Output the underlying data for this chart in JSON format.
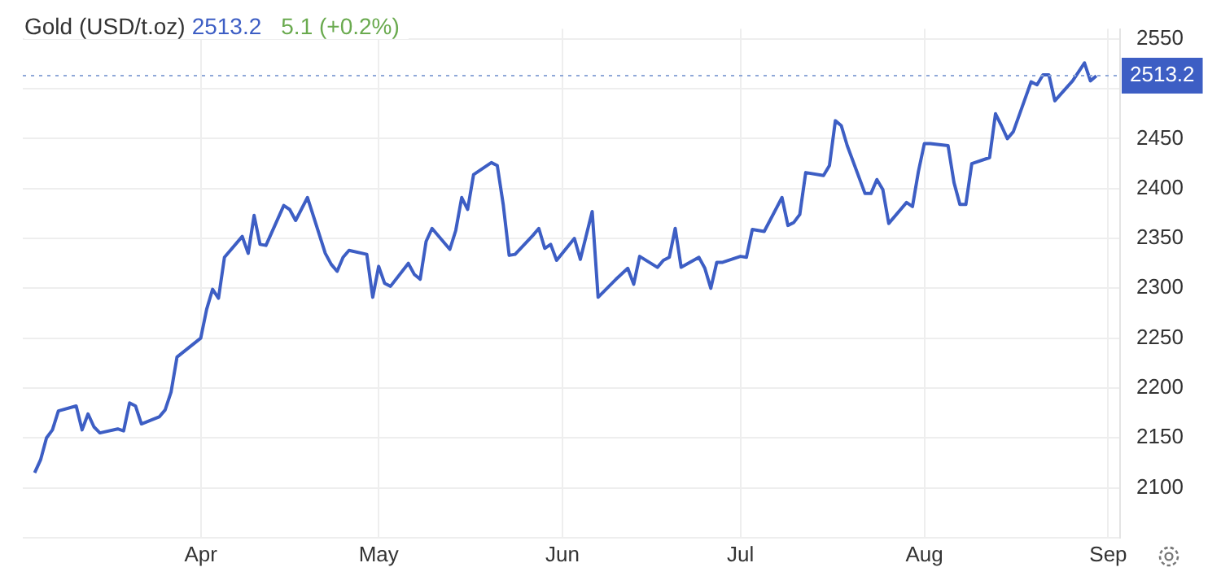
{
  "chart_data": {
    "type": "line",
    "title": "Gold (USD/t.oz)",
    "annotations": [
      "2513.2",
      "5.1 (+0.2%)"
    ],
    "x": [
      "--03-04",
      "--03-05",
      "--03-06",
      "--03-07",
      "--03-08",
      "--03-11",
      "--03-12",
      "--03-13",
      "--03-14",
      "--03-15",
      "--03-18",
      "--03-19",
      "--03-20",
      "--03-21",
      "--03-22",
      "--03-25",
      "--03-26",
      "--03-27",
      "--03-28",
      "--04-01",
      "--04-02",
      "--04-03",
      "--04-04",
      "--04-05",
      "--04-08",
      "--04-09",
      "--04-10",
      "--04-11",
      "--04-12",
      "--04-15",
      "--04-16",
      "--04-17",
      "--04-19",
      "--04-22",
      "--04-23",
      "--04-24",
      "--04-25",
      "--04-26",
      "--04-29",
      "--04-30",
      "--05-01",
      "--05-02",
      "--05-03",
      "--05-06",
      "--05-07",
      "--05-08",
      "--05-09",
      "--05-10",
      "--05-13",
      "--05-14",
      "--05-15",
      "--05-16",
      "--05-17",
      "--05-20",
      "--05-21",
      "--05-22",
      "--05-23",
      "--05-24",
      "--05-27",
      "--05-28",
      "--05-29",
      "--05-30",
      "--05-31",
      "--06-03",
      "--06-04",
      "--06-06",
      "--06-07",
      "--06-10",
      "--06-12",
      "--06-13",
      "--06-14",
      "--06-17",
      "--06-18",
      "--06-19",
      "--06-20",
      "--06-21",
      "--06-24",
      "--06-25",
      "--06-26",
      "--06-27",
      "--06-28",
      "--07-01",
      "--07-02",
      "--07-03",
      "--07-05",
      "--07-08",
      "--07-09",
      "--07-10",
      "--07-11",
      "--07-12",
      "--07-15",
      "--07-16",
      "--07-17",
      "--07-18",
      "--07-19",
      "--07-22",
      "--07-23",
      "--07-24",
      "--07-25",
      "--07-26",
      "--07-29",
      "--07-30",
      "--07-31",
      "--08-01",
      "--08-02",
      "--08-05",
      "--08-06",
      "--08-07",
      "--08-08",
      "--08-09",
      "--08-12",
      "--08-13",
      "--08-14",
      "--08-15",
      "--08-16",
      "--08-19",
      "--08-20",
      "--08-21",
      "--08-22",
      "--08-23",
      "--08-26",
      "--08-27",
      "--08-28",
      "--08-29",
      "--08-30"
    ],
    "series": [
      {
        "color": "#3d5ec4",
        "values": [
          2115,
          2128,
          2150,
          2158,
          2177,
          2182,
          2158,
          2174,
          2161,
          2155,
          2159,
          2157,
          2185,
          2182,
          2164,
          2171,
          2178,
          2196,
          2231,
          2250,
          2279,
          2299,
          2290,
          2331,
          2352,
          2335,
          2373,
          2344,
          2343,
          2383,
          2379,
          2368,
          2391,
          2335,
          2324,
          2317,
          2331,
          2338,
          2334,
          2291,
          2322,
          2305,
          2302,
          2325,
          2314,
          2309,
          2347,
          2360,
          2339,
          2358,
          2391,
          2379,
          2414,
          2426,
          2423,
          2384,
          2333,
          2334,
          2353,
          2360,
          2340,
          2344,
          2328,
          2350,
          2329,
          2377,
          2291,
          2309,
          2320,
          2304,
          2332,
          2321,
          2328,
          2331,
          2360,
          2321,
          2331,
          2320,
          2300,
          2326,
          2326,
          2332,
          2331,
          2359,
          2357,
          2391,
          2363,
          2366,
          2374,
          2416,
          2413,
          2423,
          2468,
          2463,
          2443,
          2395,
          2395,
          2409,
          2399,
          2365,
          2386,
          2382,
          2417,
          2445,
          2445,
          2443,
          2406,
          2384,
          2384,
          2425,
          2431,
          2475,
          2463,
          2450,
          2457,
          2507,
          2504,
          2514,
          2514,
          2488,
          2508,
          2517,
          2526,
          2508,
          2513
        ]
      }
    ],
    "xlim": [
      "--03-02",
      "--09-03"
    ],
    "xticks": [
      {
        "value": "--04-01",
        "label": "Apr"
      },
      {
        "value": "--05-01",
        "label": "May"
      },
      {
        "value": "--06-01",
        "label": "Jun"
      },
      {
        "value": "--07-01",
        "label": "Jul"
      },
      {
        "value": "--08-01",
        "label": "Aug"
      },
      {
        "value": "--09-01",
        "label": "Sep"
      }
    ],
    "ylim": [
      2050,
      2560
    ],
    "yticks": [
      {
        "value": 2050,
        "label": null
      },
      2100,
      2150,
      2200,
      2250,
      2300,
      2350,
      2400,
      2450,
      {
        "value": 2500,
        "label": null
      },
      2550
    ],
    "ref_lines": [
      {
        "axis": "y",
        "value": 2513.2,
        "label": "2513.2",
        "color": "#8fa8d8",
        "line_style": "dotted"
      }
    ],
    "grid": true,
    "legend": false,
    "marker": "none",
    "line_style": "solid"
  }
}
